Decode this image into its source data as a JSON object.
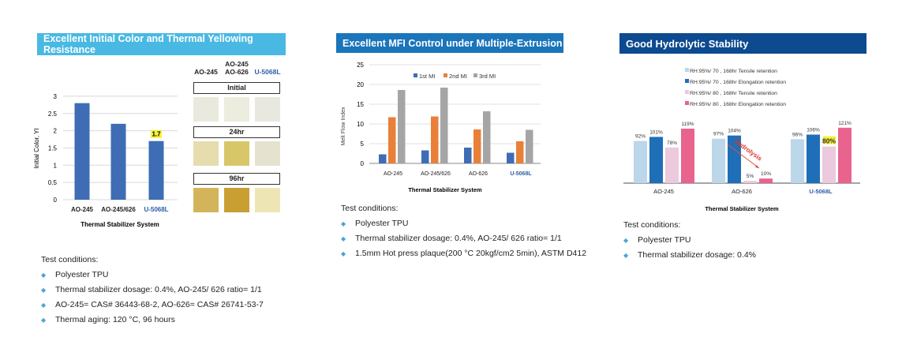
{
  "panel1": {
    "title": "Excellent Initial Color and Thermal Yellowing Resistance",
    "title_bg": "#49b9e3",
    "swatch_headers": [
      "AO-245",
      "AO-245\nAO-626",
      "U-5068L"
    ],
    "stages": [
      {
        "label": "Initial",
        "colors": [
          "#e9e9dd",
          "#ececdf",
          "#e8e8e0"
        ]
      },
      {
        "label": "24hr",
        "colors": [
          "#e6dcae",
          "#d8c769",
          "#e5e3cf"
        ]
      },
      {
        "label": "96hr",
        "colors": [
          "#d4b45a",
          "#c99f33",
          "#ede6b4"
        ]
      }
    ],
    "conditions": {
      "heading": "Test conditions:",
      "items": [
        "Polyester TPU",
        "Thermal stabilizer dosage: 0.4%, AO-245/ 626 ratio= 1/1",
        "AO-245= CAS# 36443-68-2, AO-626= CAS# 26741-53-7",
        "Thermal aging: 120 °C, 96 hours"
      ]
    }
  },
  "panel2": {
    "title": "Excellent MFI Control under Multiple-Extrusion",
    "title_bg": "#1a75bb",
    "conditions": {
      "heading": "Test conditions:",
      "items": [
        "Polyester TPU",
        "Thermal stabilizer dosage: 0.4%, AO-245/ 626 ratio= 1/1",
        "1.5mm Hot press plaque(200 °C 20kgf/cm2 5min), ASTM D412"
      ]
    }
  },
  "panel3": {
    "title": "Good Hydrolytic Stability",
    "title_bg": "#0d4a8f",
    "annotation": "Hydrolysis",
    "conditions": {
      "heading": "Test conditions:",
      "items": [
        "Polyester TPU",
        "Thermal stabilizer dosage: 0.4%"
      ]
    }
  },
  "chart_data": [
    {
      "type": "bar",
      "categories": [
        "AO-245",
        "AO-245/626",
        "U-5068L"
      ],
      "values": [
        2.8,
        2.2,
        1.7
      ],
      "data_labels": {
        "U-5068L": "1.7"
      },
      "xlabel": "Thermal Stabilizer System",
      "ylabel": "Initial Color, YI",
      "ylim": [
        0,
        3
      ],
      "yticks": [
        "0",
        "0.5",
        "1",
        "1.5",
        "2",
        "2.5",
        "3"
      ],
      "grid": true,
      "color": "#3e6db5",
      "highlight_category_color": "#3e6db5"
    },
    {
      "type": "bar",
      "categories": [
        "AO-245",
        "AO-245/626",
        "AO-626",
        "U-5068L"
      ],
      "series": [
        {
          "name": "1st MI",
          "values": [
            2.3,
            3.3,
            4.0,
            2.7
          ],
          "color": "#3e6db5"
        },
        {
          "name": "2nd MI",
          "values": [
            11.7,
            11.9,
            8.6,
            5.6
          ],
          "color": "#e8803a"
        },
        {
          "name": "3rd MI",
          "values": [
            18.6,
            19.2,
            13.2,
            8.5
          ],
          "color": "#a5a5a5"
        }
      ],
      "xlabel": "Thermal Stabilizer System",
      "ylabel": "Melt Flow Index",
      "ylim": [
        0,
        25
      ],
      "yticks": [
        "0",
        "5",
        "10",
        "15",
        "20",
        "25"
      ],
      "grid": true,
      "legend": "top"
    },
    {
      "type": "bar",
      "categories": [
        "AO-245",
        "AO-626",
        "U-5068L"
      ],
      "series": [
        {
          "name": "RH:95%/ 70    , 168hr Tensile retention",
          "values": [
            92,
            97,
            96
          ],
          "labels": [
            "92%",
            "97%",
            "96%"
          ],
          "color": "#bcd6ea"
        },
        {
          "name": "RH:95%/ 70    , 168hr Elongation retention",
          "values": [
            101,
            104,
            106
          ],
          "labels": [
            "101%",
            "104%",
            "106%"
          ],
          "color": "#1f6fb8"
        },
        {
          "name": "RH:95%/ 80    , 168hr Tensile retention",
          "values": [
            78,
            5,
            80
          ],
          "labels": [
            "78%",
            "5%",
            "80%"
          ],
          "color": "#ecc9dd"
        },
        {
          "name": "RH:95%/ 80    , 168hr Elongation retention",
          "values": [
            119,
            10,
            121
          ],
          "labels": [
            "119%",
            "10%",
            "121%"
          ],
          "color": "#e8638d"
        }
      ],
      "xlabel": "Thermal Stabilizer System",
      "legend": "top",
      "grid": false
    }
  ]
}
